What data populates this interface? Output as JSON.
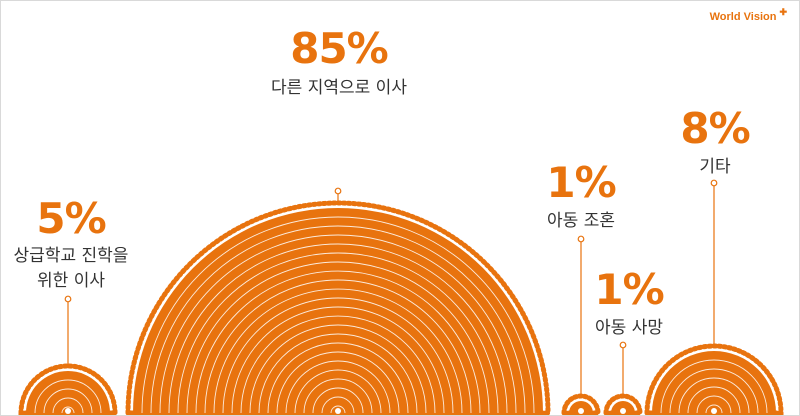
{
  "brand": {
    "logo_text": "World Vision"
  },
  "colors": {
    "accent": "#e8730e",
    "text": "#333333",
    "ring": "#ffffff"
  },
  "chart_data": {
    "type": "pie",
    "title": "",
    "categories": [
      "상급학교 진학을 위한 이사",
      "다른 지역으로 이사",
      "아동 조혼",
      "아동 사망",
      "기타"
    ],
    "values": [
      5,
      85,
      1,
      1,
      8
    ],
    "items": [
      {
        "percent_label": "5%",
        "lines": [
          "상급학교 진학을",
          "위한 이사"
        ],
        "value": 5
      },
      {
        "percent_label": "85%",
        "lines": [
          "다른 지역으로 이사"
        ],
        "value": 85
      },
      {
        "percent_label": "1%",
        "lines": [
          "아동 조혼"
        ],
        "value": 1
      },
      {
        "percent_label": "1%",
        "lines": [
          "아동 사망"
        ],
        "value": 1
      },
      {
        "percent_label": "8%",
        "lines": [
          "기타"
        ],
        "value": 8
      }
    ]
  }
}
